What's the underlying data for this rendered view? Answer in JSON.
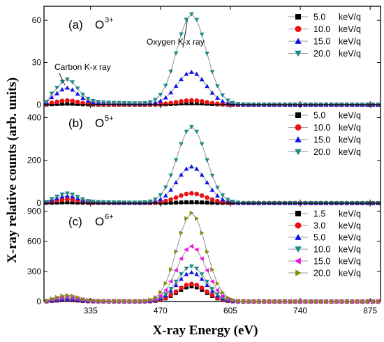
{
  "figure": {
    "xlabel": "X-ray Energy (eV)",
    "ylabel": "X-ray relative counts (arb. units)",
    "x_ticks": [
      335,
      470,
      605,
      740,
      875
    ]
  },
  "chart_data": [
    {
      "type": "line",
      "panel_label": "(a)",
      "ion_base": "O",
      "ion_charge": "3+",
      "xlim": [
        245,
        895
      ],
      "ylim": [
        0,
        70
      ],
      "y_ticks": [
        0,
        30,
        60
      ],
      "annotations": [
        {
          "text": "Carbon K-x ray",
          "target_x": 288,
          "target_y": 11
        },
        {
          "text": "Oxygen K-x ray",
          "target_x": 530,
          "target_y": 61
        }
      ],
      "legend_position": "top-right",
      "series": [
        {
          "name": "5.0 keV/q",
          "label_value": "5.0",
          "label_unit": "keV/q",
          "color": "#000000",
          "marker": "square",
          "peak_carbon": 0.6,
          "peak_oxygen": 1.2
        },
        {
          "name": "10.0 keV/q",
          "label_value": "10.0",
          "label_unit": "keV/q",
          "color": "#ee1111",
          "marker": "circle",
          "peak_carbon": 2.5,
          "peak_oxygen": 3
        },
        {
          "name": "15.0 keV/q",
          "label_value": "15.0",
          "label_unit": "keV/q",
          "color": "#1111ee",
          "marker": "triangle-up",
          "peak_carbon": 10,
          "peak_oxygen": 23
        },
        {
          "name": "20.0 keV/q",
          "label_value": "20.0",
          "label_unit": "keV/q",
          "color": "#1b8a8a",
          "marker": "triangle-down",
          "peak_carbon": 15,
          "peak_oxygen": 64
        }
      ]
    },
    {
      "type": "line",
      "panel_label": "(b)",
      "ion_base": "O",
      "ion_charge": "5+",
      "xlim": [
        245,
        895
      ],
      "ylim": [
        0,
        460
      ],
      "y_ticks": [
        0,
        200,
        400
      ],
      "legend_position": "top-right",
      "series": [
        {
          "name": "5.0 keV/q",
          "label_value": "5.0",
          "label_unit": "keV/q",
          "color": "#000000",
          "marker": "square",
          "peak_carbon": 3,
          "peak_oxygen": 4
        },
        {
          "name": "10.0 keV/q",
          "label_value": "10.0",
          "label_unit": "keV/q",
          "color": "#ee1111",
          "marker": "circle",
          "peak_carbon": 15,
          "peak_oxygen": 45
        },
        {
          "name": "15.0 keV/q",
          "label_value": "15.0",
          "label_unit": "keV/q",
          "color": "#1111ee",
          "marker": "triangle-up",
          "peak_carbon": 28,
          "peak_oxygen": 170
        },
        {
          "name": "20.0 keV/q",
          "label_value": "20.0",
          "label_unit": "keV/q",
          "color": "#1b8a8a",
          "marker": "triangle-down",
          "peak_carbon": 38,
          "peak_oxygen": 355
        }
      ]
    },
    {
      "type": "line",
      "panel_label": "(c)",
      "ion_base": "O",
      "ion_charge": "6+",
      "xlim": [
        245,
        895
      ],
      "ylim": [
        0,
        980
      ],
      "y_ticks": [
        0,
        300,
        600,
        900
      ],
      "legend_position": "top-right",
      "series": [
        {
          "name": "1.5 keV/q",
          "label_value": "1.5",
          "label_unit": "keV/q",
          "color": "#000000",
          "marker": "square",
          "peak_carbon": 12,
          "peak_oxygen": 150
        },
        {
          "name": "3.0 keV/q",
          "label_value": "3.0",
          "label_unit": "keV/q",
          "color": "#ee1111",
          "marker": "circle",
          "peak_carbon": 15,
          "peak_oxygen": 175
        },
        {
          "name": "5.0 keV/q",
          "label_value": "5.0",
          "label_unit": "keV/q",
          "color": "#1111ee",
          "marker": "triangle-up",
          "peak_carbon": 20,
          "peak_oxygen": 290
        },
        {
          "name": "10.0 keV/q",
          "label_value": "10.0",
          "label_unit": "keV/q",
          "color": "#1b8a8a",
          "marker": "triangle-down",
          "peak_carbon": 30,
          "peak_oxygen": 350
        },
        {
          "name": "15.0 keV/q",
          "label_value": "15.0",
          "label_unit": "keV/q",
          "color": "#ee11ee",
          "marker": "triangle-left",
          "peak_carbon": 40,
          "peak_oxygen": 550
        },
        {
          "name": "20.0 keV/q",
          "label_value": "20.0",
          "label_unit": "keV/q",
          "color": "#8a8a12",
          "marker": "triangle-right",
          "peak_carbon": 52,
          "peak_oxygen": 880
        }
      ]
    }
  ]
}
